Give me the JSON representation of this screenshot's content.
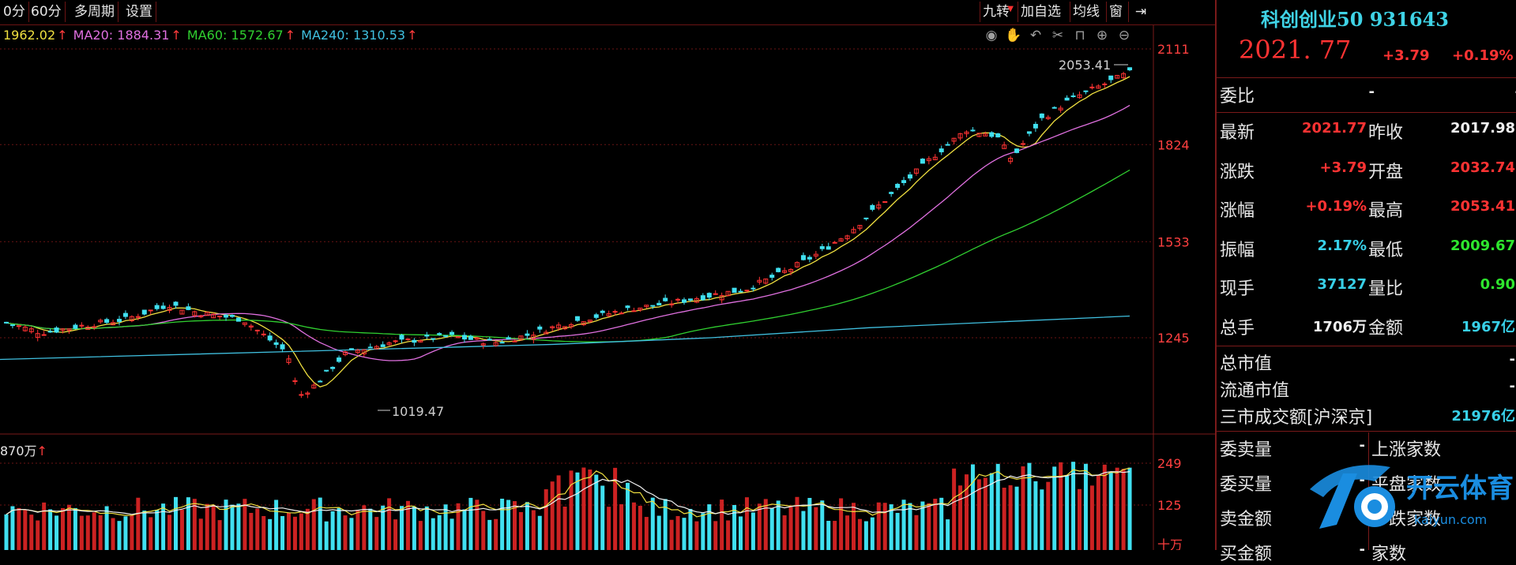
{
  "toolbar": {
    "tabs": [
      "0分",
      "60分",
      "多周期",
      "设置"
    ],
    "buttons": [
      "九转",
      "加自选",
      "均线",
      "窗"
    ]
  },
  "ma_legend": [
    {
      "label": "1962.02",
      "color": "#f0e040"
    },
    {
      "label": "MA20: 1884.31",
      "color": "#e070e0"
    },
    {
      "label": "MA60: 1572.67",
      "color": "#30d030"
    },
    {
      "label": "MA240: 1310.53",
      "color": "#40c0e0"
    }
  ],
  "chart_data": {
    "type": "candlestick",
    "y_ticks": [
      "2111",
      "1824",
      "1533",
      "1245"
    ],
    "high_label": "2053.41",
    "low_label": "1019.47",
    "volume_legend": "870万",
    "volume_ticks": [
      "249",
      "125",
      "十万"
    ]
  },
  "quote": {
    "title": "科创创业50 931643",
    "price": "2021. 77",
    "change": "+3.79",
    "change_pct": "+0.19%",
    "webi_label": "委比",
    "webi_left": "-",
    "webi_right": "-",
    "rows": [
      {
        "l1": "最新",
        "v1": "2021.77",
        "c1": "red",
        "l2": "昨收",
        "v2": "2017.98",
        "c2": "white"
      },
      {
        "l1": "涨跌",
        "v1": "+3.79",
        "c1": "red",
        "l2": "开盘",
        "v2": "2032.74",
        "c2": "red"
      },
      {
        "l1": "涨幅",
        "v1": "+0.19%",
        "c1": "red",
        "l2": "最高",
        "v2": "2053.41",
        "c2": "red"
      },
      {
        "l1": "振幅",
        "v1": "2.17%",
        "c1": "cyan",
        "l2": "最低",
        "v2": "2009.67",
        "c2": "green"
      },
      {
        "l1": "现手",
        "v1": "37127",
        "c1": "cyan",
        "l2": "量比",
        "v2": "0.90",
        "c2": "green"
      },
      {
        "l1": "总手",
        "v1": "1706万",
        "c1": "white",
        "l2": "金额",
        "v2": "1967亿",
        "c2": "cyan"
      }
    ],
    "cap_rows": [
      {
        "label": "总市值",
        "value": "-"
      },
      {
        "label": "流通市值",
        "value": "-"
      },
      {
        "label": "三市成交额[沪深京]",
        "value": "21976亿"
      }
    ],
    "bottom_left": [
      "委卖量",
      "委买量",
      "卖金额",
      "买金额"
    ],
    "bottom_right": [
      "上涨家数",
      "平盘家数",
      "下跌家数",
      "家数"
    ],
    "bottom_left_dash": "-"
  },
  "watermark": {
    "brand": "开云体育",
    "url": "kaiyun.com"
  }
}
